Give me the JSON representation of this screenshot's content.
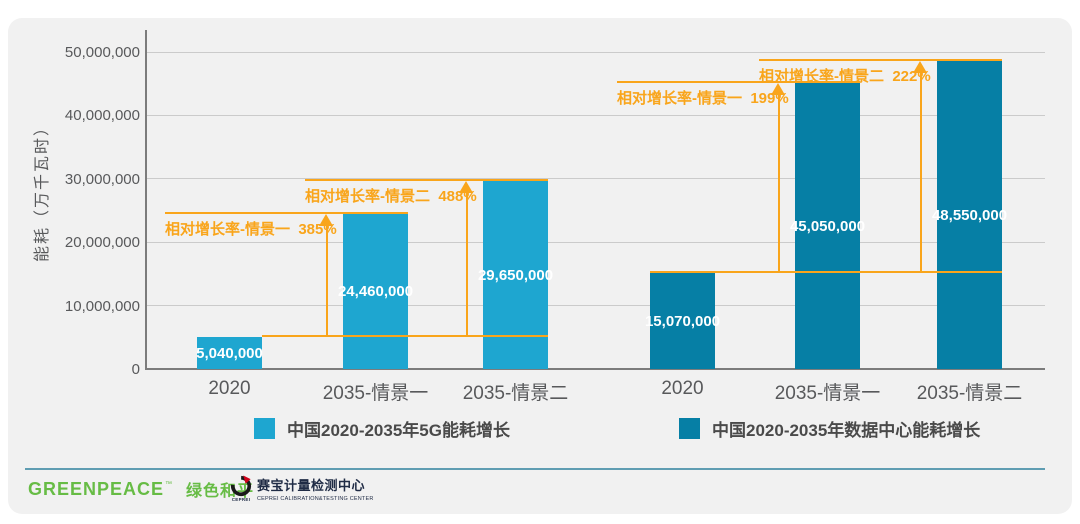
{
  "chart_data": {
    "type": "bar",
    "title": "",
    "ylabel": "能耗（万千瓦时）",
    "xlabel": "",
    "grid": true,
    "legend_position": "bottom",
    "background_color": "#F1F1F1",
    "annotation_color": "#F9A51B",
    "ylim": [
      0,
      53500000
    ],
    "y_ticks": [
      {
        "value": 0,
        "label": "0"
      },
      {
        "value": 10000000,
        "label": "10,000,000"
      },
      {
        "value": 20000000,
        "label": "20,000,000"
      },
      {
        "value": 30000000,
        "label": "30,000,000"
      },
      {
        "value": 40000000,
        "label": "40,000,000"
      },
      {
        "value": 50000000,
        "label": "50,000,000"
      }
    ],
    "groups": [
      {
        "name": "中国2020-2035年5G能耗增长",
        "color": "#1EA6D0",
        "categories": [
          "2020",
          "2035-情景一",
          "2035-情景二"
        ],
        "values": [
          5040000,
          24460000,
          29650000
        ],
        "value_labels": [
          "5,040,000",
          "24,460,000",
          "29,650,000"
        ],
        "annotations": [
          {
            "label": "相对增长率-情景一",
            "value": "385%",
            "from": "2020",
            "to": "2035-情景一"
          },
          {
            "label": "相对增长率-情景二",
            "value": "488%",
            "from": "2020",
            "to": "2035-情景二"
          }
        ]
      },
      {
        "name": "中国2020-2035年数据中心能耗增长",
        "color": "#067FA5",
        "categories": [
          "2020",
          "2035-情景一",
          "2035-情景二"
        ],
        "values": [
          15070000,
          45050000,
          48550000
        ],
        "value_labels": [
          "15,070,000",
          "45,050,000",
          "48,550,000"
        ],
        "annotations": [
          {
            "label": "相对增长率-情景一",
            "value": "199%",
            "from": "2020",
            "to": "2035-情景一"
          },
          {
            "label": "相对增长率-情景二",
            "value": "222%",
            "from": "2020",
            "to": "2035-情景二"
          }
        ]
      }
    ]
  },
  "legend": {
    "items": [
      {
        "label": "中国2020-2035年5G能耗增长",
        "color": "#1EA6D0"
      },
      {
        "label": "中国2020-2035年数据中心能耗增长",
        "color": "#067FA5"
      }
    ]
  },
  "footer": {
    "greenpeace_wordmark": "GREENPEACE",
    "greenpeace_tm": "™",
    "greenpeace_cn": "绿色和平",
    "cepri_logo_caption": "CEPREI",
    "cepri_name": "赛宝计量检测中心",
    "cepri_sub": "CEPREI CALIBRATION&TESTING CENTER"
  }
}
